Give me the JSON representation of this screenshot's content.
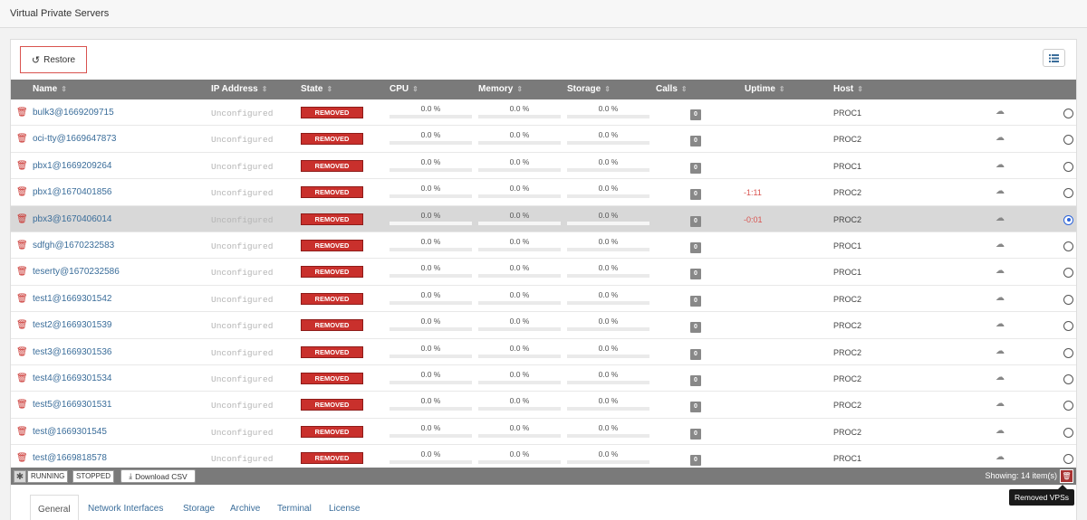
{
  "page": {
    "title": "Virtual Private Servers"
  },
  "toolbar": {
    "restore_label": "Restore"
  },
  "table": {
    "columns": [
      "Name",
      "IP Address",
      "State",
      "CPU",
      "Memory",
      "Storage",
      "Calls",
      "Uptime",
      "Host"
    ],
    "rows": [
      {
        "name": "bulk3@1669209715",
        "ip": "Unconfigured",
        "state": "REMOVED",
        "cpu": "0.0 %",
        "memory": "0.0 %",
        "storage": "0.0 %",
        "calls": "0",
        "uptime": "",
        "host": "PROC1",
        "selected": false
      },
      {
        "name": "oci-tty@1669647873",
        "ip": "Unconfigured",
        "state": "REMOVED",
        "cpu": "0.0 %",
        "memory": "0.0 %",
        "storage": "0.0 %",
        "calls": "0",
        "uptime": "",
        "host": "PROC2",
        "selected": false
      },
      {
        "name": "pbx1@1669209264",
        "ip": "Unconfigured",
        "state": "REMOVED",
        "cpu": "0.0 %",
        "memory": "0.0 %",
        "storage": "0.0 %",
        "calls": "0",
        "uptime": "",
        "host": "PROC1",
        "selected": false
      },
      {
        "name": "pbx1@1670401856",
        "ip": "Unconfigured",
        "state": "REMOVED",
        "cpu": "0.0 %",
        "memory": "0.0 %",
        "storage": "0.0 %",
        "calls": "0",
        "uptime": "-1:11",
        "host": "PROC2",
        "selected": false
      },
      {
        "name": "pbx3@1670406014",
        "ip": "Unconfigured",
        "state": "REMOVED",
        "cpu": "0.0 %",
        "memory": "0.0 %",
        "storage": "0.0 %",
        "calls": "0",
        "uptime": "-0:01",
        "host": "PROC2",
        "selected": true
      },
      {
        "name": "sdfgh@1670232583",
        "ip": "Unconfigured",
        "state": "REMOVED",
        "cpu": "0.0 %",
        "memory": "0.0 %",
        "storage": "0.0 %",
        "calls": "0",
        "uptime": "",
        "host": "PROC1",
        "selected": false
      },
      {
        "name": "teserty@1670232586",
        "ip": "Unconfigured",
        "state": "REMOVED",
        "cpu": "0.0 %",
        "memory": "0.0 %",
        "storage": "0.0 %",
        "calls": "0",
        "uptime": "",
        "host": "PROC1",
        "selected": false
      },
      {
        "name": "test1@1669301542",
        "ip": "Unconfigured",
        "state": "REMOVED",
        "cpu": "0.0 %",
        "memory": "0.0 %",
        "storage": "0.0 %",
        "calls": "0",
        "uptime": "",
        "host": "PROC2",
        "selected": false
      },
      {
        "name": "test2@1669301539",
        "ip": "Unconfigured",
        "state": "REMOVED",
        "cpu": "0.0 %",
        "memory": "0.0 %",
        "storage": "0.0 %",
        "calls": "0",
        "uptime": "",
        "host": "PROC2",
        "selected": false
      },
      {
        "name": "test3@1669301536",
        "ip": "Unconfigured",
        "state": "REMOVED",
        "cpu": "0.0 %",
        "memory": "0.0 %",
        "storage": "0.0 %",
        "calls": "0",
        "uptime": "",
        "host": "PROC2",
        "selected": false
      },
      {
        "name": "test4@1669301534",
        "ip": "Unconfigured",
        "state": "REMOVED",
        "cpu": "0.0 %",
        "memory": "0.0 %",
        "storage": "0.0 %",
        "calls": "0",
        "uptime": "",
        "host": "PROC2",
        "selected": false
      },
      {
        "name": "test5@1669301531",
        "ip": "Unconfigured",
        "state": "REMOVED",
        "cpu": "0.0 %",
        "memory": "0.0 %",
        "storage": "0.0 %",
        "calls": "0",
        "uptime": "",
        "host": "PROC2",
        "selected": false
      },
      {
        "name": "test@1669301545",
        "ip": "Unconfigured",
        "state": "REMOVED",
        "cpu": "0.0 %",
        "memory": "0.0 %",
        "storage": "0.0 %",
        "calls": "0",
        "uptime": "",
        "host": "PROC2",
        "selected": false
      },
      {
        "name": "test@1669818578",
        "ip": "Unconfigured",
        "state": "REMOVED",
        "cpu": "0.0 %",
        "memory": "0.0 %",
        "storage": "0.0 %",
        "calls": "0",
        "uptime": "",
        "host": "PROC1",
        "selected": false
      }
    ]
  },
  "footer": {
    "filters": [
      "RUNNING",
      "STOPPED"
    ],
    "download_label": "Download CSV",
    "showing": "Showing: 14 item(s)",
    "tooltip": "Removed VPSs"
  },
  "tabs": [
    "General",
    "Network Interfaces",
    "Storage",
    "Archive",
    "Terminal",
    "License"
  ],
  "active_tab": "General",
  "colors": {
    "removed": "#c9302c",
    "header": "#7a7a7a",
    "link": "#3a6d9a",
    "selected_row": "#d8d8d8",
    "radio_selected": "#2b63d9"
  }
}
